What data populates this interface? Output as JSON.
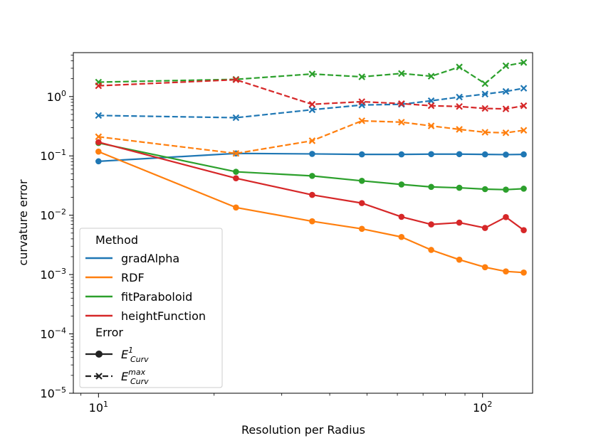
{
  "chart_data": {
    "type": "line",
    "xscale": "log",
    "yscale": "log",
    "xlabel": "Resolution per Radius",
    "ylabel": "curvature error",
    "xlim": [
      8.6,
      135
    ],
    "ylim": [
      1e-05,
      5.5
    ],
    "x_ticks": [
      {
        "value": 10,
        "base": "10",
        "exp": "1"
      },
      {
        "value": 100,
        "base": "10",
        "exp": "2"
      }
    ],
    "y_ticks": [
      {
        "value": 1e-05,
        "base": "10",
        "exp": "−5"
      },
      {
        "value": 0.0001,
        "base": "10",
        "exp": "−4"
      },
      {
        "value": 0.001,
        "base": "10",
        "exp": "−3"
      },
      {
        "value": 0.01,
        "base": "10",
        "exp": "−2"
      },
      {
        "value": 0.1,
        "base": "10",
        "exp": "−1"
      },
      {
        "value": 1,
        "base": "10",
        "exp": "0"
      }
    ],
    "x": [
      10,
      22.8,
      36,
      48.5,
      61.5,
      73.5,
      87,
      101.5,
      115,
      128
    ],
    "series": [
      {
        "name": "gradAlpha",
        "color": "#1f77b4",
        "e1": [
          0.081,
          0.11,
          0.108,
          0.106,
          0.106,
          0.107,
          0.107,
          0.106,
          0.105,
          0.106
        ],
        "emax": [
          0.48,
          0.44,
          0.6,
          0.72,
          0.74,
          0.85,
          0.98,
          1.1,
          1.22,
          1.38
        ]
      },
      {
        "name": "RDF",
        "color": "#ff7f0e",
        "e1": [
          0.118,
          0.0135,
          0.0079,
          0.0059,
          0.0043,
          0.0026,
          0.00178,
          0.00133,
          0.00113,
          0.00108
        ],
        "emax": [
          0.21,
          0.11,
          0.18,
          0.39,
          0.37,
          0.32,
          0.28,
          0.25,
          0.245,
          0.27
        ]
      },
      {
        "name": "fitParaboloid",
        "color": "#2ca02c",
        "e1": [
          0.165,
          0.054,
          0.046,
          0.038,
          0.033,
          0.03,
          0.029,
          0.0275,
          0.027,
          0.028
        ],
        "emax": [
          1.75,
          1.95,
          2.4,
          2.15,
          2.45,
          2.2,
          3.15,
          1.65,
          3.3,
          3.75
        ]
      },
      {
        "name": "heightFunction",
        "color": "#d62728",
        "e1": [
          0.17,
          0.042,
          0.022,
          0.016,
          0.0094,
          0.007,
          0.0075,
          0.0061,
          0.0093,
          0.0056
        ],
        "emax": [
          1.52,
          1.92,
          0.74,
          0.82,
          0.76,
          0.7,
          0.68,
          0.63,
          0.62,
          0.7
        ]
      }
    ],
    "legend": {
      "position": "lower-left",
      "method_title": "Method",
      "error_title": "Error",
      "error_entries": [
        {
          "style": "solid",
          "marker": "circle",
          "label_main": "E",
          "label_sup": "1",
          "label_sub": "Curv"
        },
        {
          "style": "dashed",
          "marker": "x",
          "label_main": "E",
          "label_sup": "max",
          "label_sub": "Curv"
        }
      ]
    }
  }
}
